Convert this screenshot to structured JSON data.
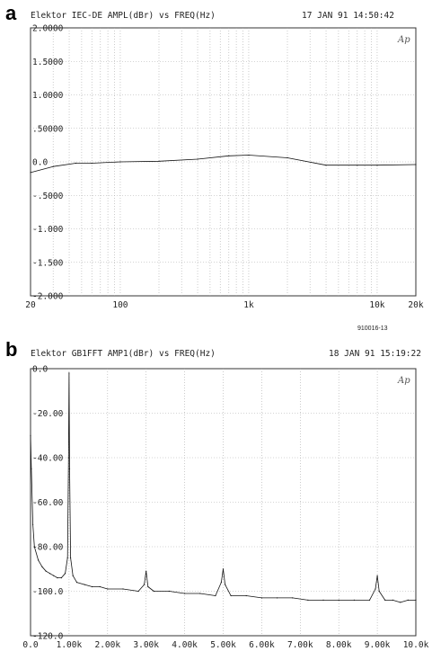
{
  "chart_data": [
    {
      "panel_label": "a",
      "type": "line",
      "title": "Elektor IEC-DE AMPL(dBr) vs FREQ(Hz)",
      "timestamp": "17 JAN 91 14:50:42",
      "logo_text": "Ap",
      "figure_code": "910016-13",
      "x_scale": "log",
      "xlim": [
        20,
        20000
      ],
      "ylim": [
        -2.0,
        2.0
      ],
      "grid": true,
      "x_tick_labels": [
        {
          "value": 20,
          "label": "20"
        },
        {
          "value": 100,
          "label": "100"
        },
        {
          "value": 1000,
          "label": "1k"
        },
        {
          "value": 10000,
          "label": "10k"
        },
        {
          "value": 20000,
          "label": "20k"
        }
      ],
      "y_tick_labels": [
        {
          "value": 2.0,
          "label": "2.0000"
        },
        {
          "value": 1.5,
          "label": "1.5000"
        },
        {
          "value": 1.0,
          "label": "1.0000"
        },
        {
          "value": 0.5,
          "label": ".50000"
        },
        {
          "value": 0.0,
          "label": "0.0"
        },
        {
          "value": -0.5,
          "label": "-.5000"
        },
        {
          "value": -1.0,
          "label": "-1.000"
        },
        {
          "value": -1.5,
          "label": "-1.500"
        },
        {
          "value": -2.0,
          "label": "-2.000"
        }
      ],
      "series": [
        {
          "x": [
            20,
            30,
            45,
            60,
            100,
            200,
            400,
            700,
            1000,
            2000,
            4000,
            7000,
            10000,
            20000
          ],
          "y": [
            -0.16,
            -0.07,
            -0.02,
            -0.02,
            0.0,
            0.01,
            0.04,
            0.09,
            0.1,
            0.06,
            -0.05,
            -0.05,
            -0.05,
            -0.04
          ]
        }
      ]
    },
    {
      "panel_label": "b",
      "type": "line",
      "title": "Elektor GB1FFT AMP1(dBr) vs FREQ(Hz)",
      "timestamp": "18 JAN 91 15:19:22",
      "logo_text": "Ap",
      "x_scale": "linear",
      "xlim": [
        0,
        10000
      ],
      "ylim": [
        -120,
        0
      ],
      "grid": true,
      "x_tick_labels": [
        {
          "value": 0,
          "label": "0.0"
        },
        {
          "value": 1000,
          "label": "1.00k"
        },
        {
          "value": 2000,
          "label": "2.00k"
        },
        {
          "value": 3000,
          "label": "3.00k"
        },
        {
          "value": 4000,
          "label": "4.00k"
        },
        {
          "value": 5000,
          "label": "5.00k"
        },
        {
          "value": 6000,
          "label": "6.00k"
        },
        {
          "value": 7000,
          "label": "7.00k"
        },
        {
          "value": 8000,
          "label": "8.00k"
        },
        {
          "value": 9000,
          "label": "9.00k"
        },
        {
          "value": 10000,
          "label": "10.0k"
        }
      ],
      "y_tick_labels": [
        {
          "value": 0,
          "label": "0.0"
        },
        {
          "value": -20,
          "label": "-20.00"
        },
        {
          "value": -40,
          "label": "-40.00"
        },
        {
          "value": -60,
          "label": "-60.00"
        },
        {
          "value": -80,
          "label": "-80.00"
        },
        {
          "value": -100,
          "label": "-100.0"
        },
        {
          "value": -120,
          "label": "-120.0"
        }
      ],
      "series": [
        {
          "x": [
            0,
            20,
            60,
            100,
            200,
            300,
            400,
            500,
            600,
            700,
            800,
            900,
            960,
            985,
            1000,
            1015,
            1040,
            1100,
            1200,
            1400,
            1600,
            1800,
            2000,
            2400,
            2800,
            2950,
            3000,
            3050,
            3200,
            3600,
            4000,
            4400,
            4800,
            4950,
            5000,
            5050,
            5200,
            5600,
            6000,
            6400,
            6800,
            7200,
            7600,
            8000,
            8400,
            8800,
            8950,
            9000,
            9050,
            9200,
            9400,
            9600,
            9800,
            10000
          ],
          "y": [
            -30,
            -45,
            -70,
            -80,
            -86,
            -89,
            -91,
            -92,
            -93,
            -94,
            -94,
            -92,
            -85,
            -40,
            -2,
            -45,
            -85,
            -93,
            -96,
            -97,
            -98,
            -98,
            -99,
            -99,
            -100,
            -97,
            -91,
            -98,
            -100,
            -100,
            -101,
            -101,
            -102,
            -96,
            -90,
            -97,
            -102,
            -102,
            -103,
            -103,
            -103,
            -104,
            -104,
            -104,
            -104,
            -104,
            -99,
            -93,
            -100,
            -104,
            -104,
            -105,
            -104,
            -104
          ]
        }
      ]
    }
  ]
}
